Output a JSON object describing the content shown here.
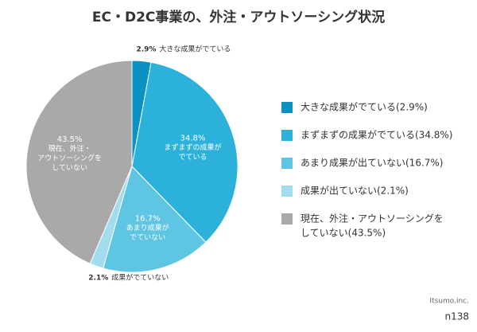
{
  "chart_data": {
    "type": "pie",
    "title": "EC・D2C事業の、外注・アウトソーシング状況",
    "categories": [
      [
        "大きな成果がでている"
      ],
      [
        "まずまずの成果が",
        "でている"
      ],
      [
        "あまり成果が",
        "でていない"
      ],
      [
        "成果がでていない"
      ],
      [
        "現在、外注・",
        "アウトソーシングを",
        "していない"
      ]
    ],
    "values": [
      2.9,
      34.8,
      16.7,
      2.1,
      43.5
    ],
    "value_labels": [
      "2.9%",
      "34.8%",
      "16.7%",
      "2.1%",
      "43.5%"
    ],
    "colors": [
      "#0b92c2",
      "#2cb2da",
      "#5ec5e3",
      "#a2dcee",
      "#a9a9a9"
    ],
    "legend": [
      [
        "大きな成果がでている(2.9%)"
      ],
      [
        "まずまずの成果がでている(34.8%)"
      ],
      [
        "あまり成果が出ていない(16.7%)"
      ],
      [
        "成果が出ていない(2.1%)"
      ],
      [
        "現在、外注・アウトソーシングを",
        "していない(43.5%)"
      ]
    ],
    "source": "Itsumo.inc.",
    "sample": "n138"
  }
}
